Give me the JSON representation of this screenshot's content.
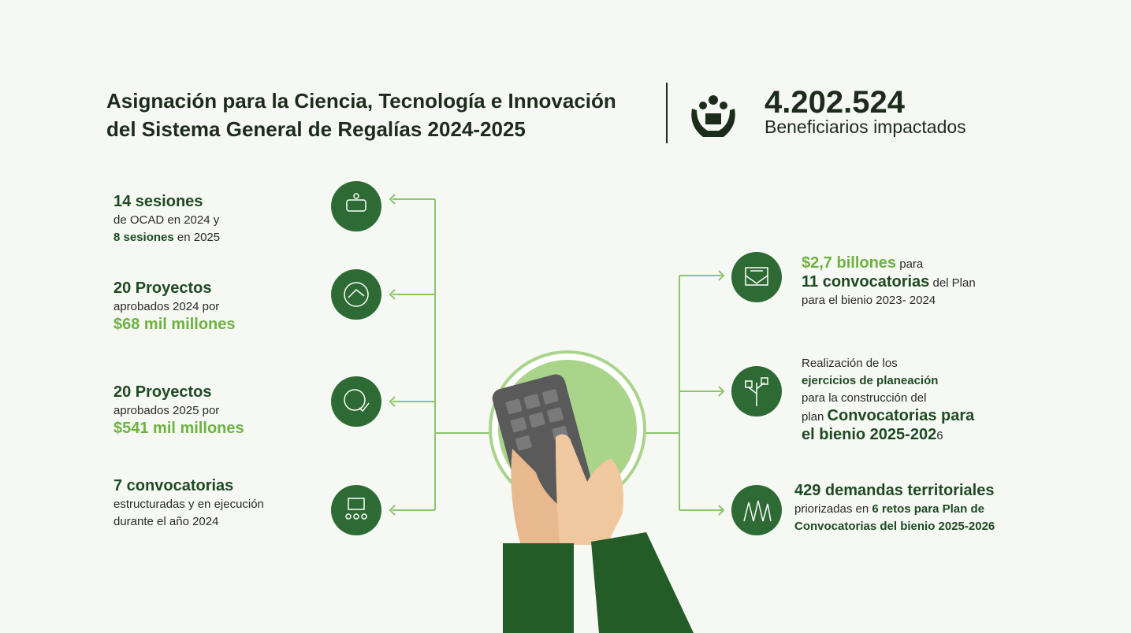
{
  "header": {
    "title": [
      "Asignación para la Ciencia, Tecnología e Innovación",
      "del Sistema General de Regalías 2024-2025"
    ],
    "stat": {
      "number": "4.202.524",
      "label": "Beneficiarios impactados"
    }
  },
  "left_items": [
    {
      "lines": [
        [
          {
            "text": "14 sesiones",
            "style": "big"
          }
        ],
        [
          {
            "text": "de OCAD en 2024 y",
            "style": "plain"
          }
        ],
        [
          {
            "text": "8 sesiones",
            "style": "bold"
          },
          {
            "text": " en 2025",
            "style": "plain"
          }
        ]
      ]
    },
    {
      "lines": [
        [
          {
            "text": "20 Proyectos",
            "style": "big"
          }
        ],
        [
          {
            "text": "aprobados 2024 por",
            "style": "plain"
          }
        ],
        [
          {
            "text": "$68 mil millones",
            "style": "big-accent"
          }
        ]
      ]
    },
    {
      "lines": [
        [
          {
            "text": "20 Proyectos",
            "style": "big"
          }
        ],
        [
          {
            "text": "aprobados 2025 por",
            "style": "plain"
          }
        ],
        [
          {
            "text": "$541 mil millones",
            "style": "big-accent"
          }
        ]
      ]
    },
    {
      "lines": [
        [
          {
            "text": "7 convocatorias",
            "style": "big"
          }
        ],
        [
          {
            "text": "estructuradas y en ejecución",
            "style": "plain"
          }
        ],
        [
          {
            "text": "durante el año 2024",
            "style": "plain"
          }
        ]
      ]
    }
  ],
  "right_items": [
    {
      "lines": [
        [
          {
            "text": "$2,7 billones",
            "style": "big-accent"
          },
          {
            "text": " para",
            "style": "plain"
          }
        ],
        [
          {
            "text": "11 convocatorias",
            "style": "big"
          },
          {
            "text": " del Plan",
            "style": "plain"
          }
        ],
        [
          {
            "text": "para el bienio 2023- 2024",
            "style": "plain"
          }
        ]
      ]
    },
    {
      "lines": [
        [
          {
            "text": "Realización de los",
            "style": "plain"
          }
        ],
        [
          {
            "text": "ejercicios de planeación",
            "style": "bold"
          }
        ],
        [
          {
            "text": "para la construcción del",
            "style": "plain"
          }
        ],
        [
          {
            "text": "plan ",
            "style": "plain"
          },
          {
            "text": "Convocatorias para",
            "style": "big"
          }
        ],
        [
          {
            "text": "el bienio 2025-202",
            "style": "big"
          },
          {
            "text": "6",
            "style": "plain"
          }
        ]
      ]
    },
    {
      "lines": [
        [
          {
            "text": "429 demandas territoriales",
            "style": "big"
          }
        ],
        [
          {
            "text": "priorizadas en ",
            "style": "plain"
          },
          {
            "text": "6 retos para Plan de",
            "style": "bold"
          }
        ],
        [
          {
            "text": "Convocatorias del bienio 2025-2026",
            "style": "bold"
          }
        ]
      ]
    }
  ]
}
